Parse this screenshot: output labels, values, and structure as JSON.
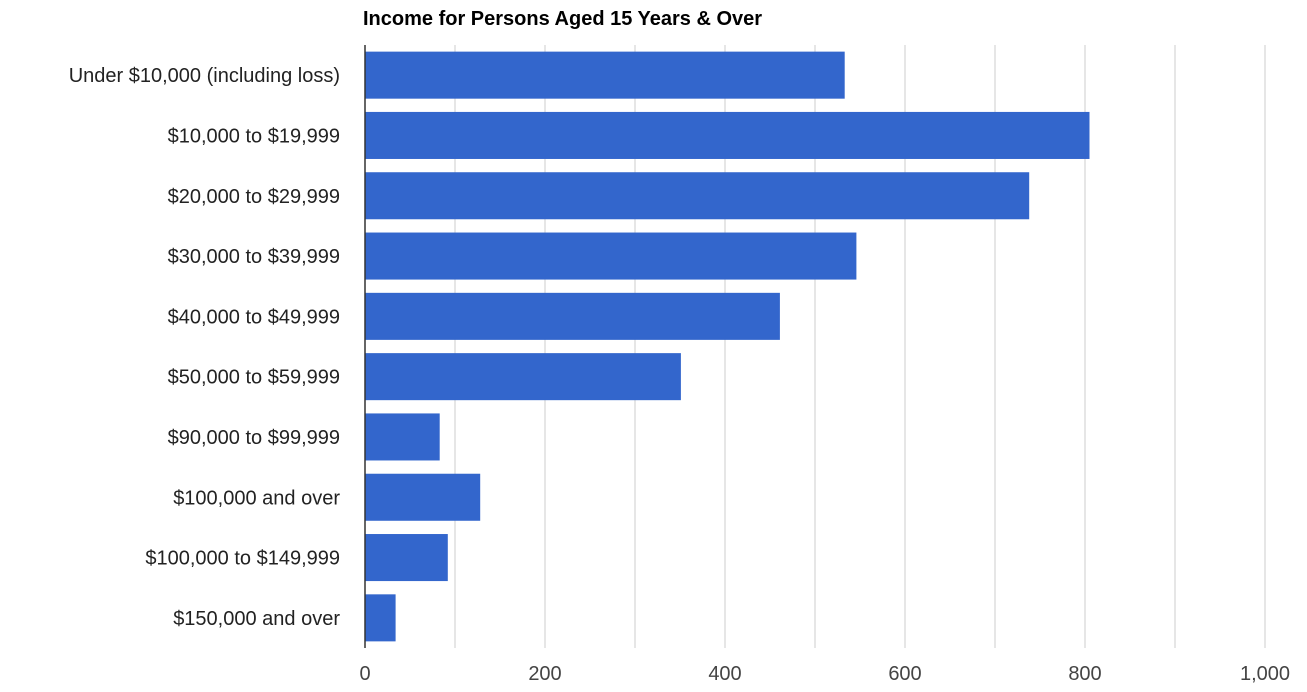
{
  "chart_data": {
    "type": "bar",
    "orientation": "horizontal",
    "title": "Income for Persons Aged 15 Years & Over",
    "xlabel": "",
    "ylabel": "",
    "categories": [
      "Under $10,000 (including loss)",
      "$10,000 to $19,999",
      "$20,000 to $29,999",
      "$30,000 to $39,999",
      "$40,000 to $49,999",
      "$50,000 to $59,999",
      "$90,000 to $99,999",
      "$100,000 and over",
      "$100,000 to $149,999",
      "$150,000 and over"
    ],
    "values": [
      533,
      805,
      738,
      546,
      461,
      351,
      83,
      128,
      92,
      34
    ],
    "xlim": [
      0,
      1000
    ],
    "xticks": [
      0,
      200,
      400,
      600,
      800,
      1000
    ],
    "xtick_labels": [
      "0",
      "200",
      "400",
      "600",
      "800",
      "1,000"
    ],
    "grid": true,
    "legend": "none",
    "bar_color": "#3366cc"
  }
}
